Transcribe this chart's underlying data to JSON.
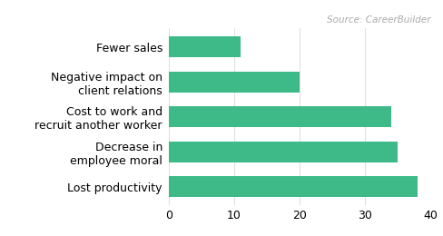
{
  "categories": [
    "Lost productivity",
    "Decrease in\nemployee moral",
    "Cost to work and\nrecruit another worker",
    "Negative impact on\nclient relations",
    "Fewer sales"
  ],
  "values": [
    38,
    35,
    34,
    20,
    11
  ],
  "bar_color": "#3dba87",
  "xlim": [
    0,
    40
  ],
  "xticks": [
    0,
    10,
    20,
    30,
    40
  ],
  "source_text": "Source: CareerBuilder",
  "background_color": "#ffffff",
  "bar_height": 0.6,
  "label_fontsize": 9,
  "tick_fontsize": 9
}
